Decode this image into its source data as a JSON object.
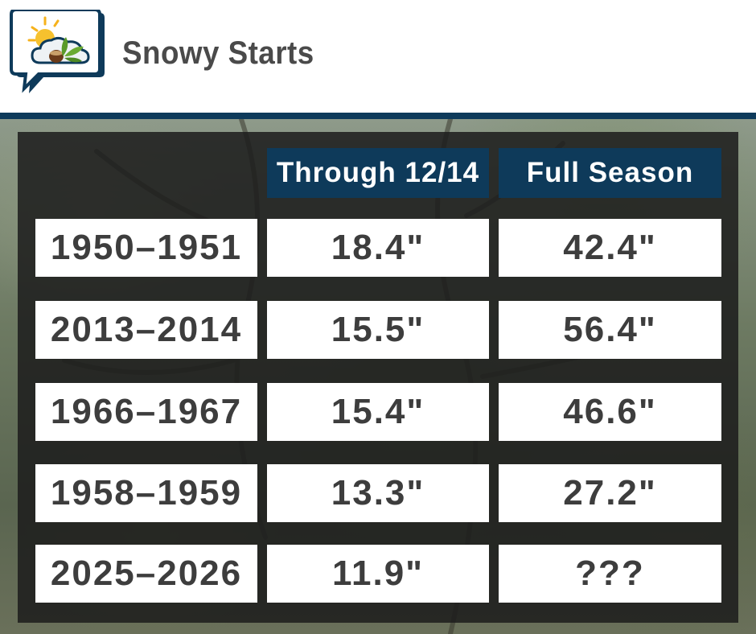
{
  "header": {
    "title": "Snowy Starts",
    "logo_icon": "weather-speech-bubble-icon"
  },
  "colors": {
    "brand_navy": "#0e3a5a",
    "text_dark": "#3d3d3d",
    "title_gray": "#4a4a4a"
  },
  "table": {
    "columns": [
      "",
      "Through 12/14",
      "Full Season"
    ],
    "rows": [
      {
        "season": "1950–1951",
        "through": "18.4\"",
        "full": "42.4\""
      },
      {
        "season": "2013–2014",
        "through": "15.5\"",
        "full": "56.4\""
      },
      {
        "season": "1966–1967",
        "through": "15.4\"",
        "full": "46.6\""
      },
      {
        "season": "1958–1959",
        "through": "13.3\"",
        "full": "27.2\""
      },
      {
        "season": "2025–2026",
        "through": "11.9\"",
        "full": "???"
      }
    ]
  }
}
